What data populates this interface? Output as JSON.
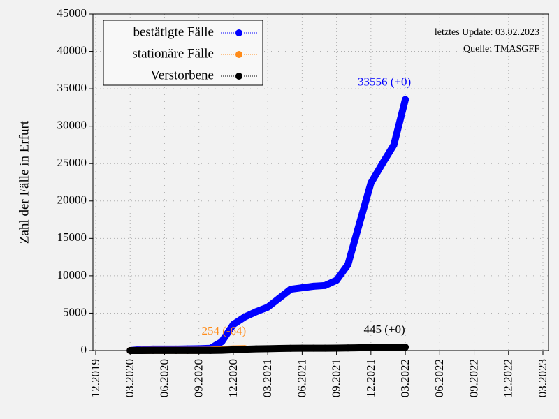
{
  "chart_data": {
    "type": "line",
    "y_label": "Zahl der Fälle in Erfurt",
    "annotations": [
      "letztes Update: 03.02.2023",
      "Quelle: TMASGFF"
    ],
    "xlim": [
      "12.2019",
      "03.2023"
    ],
    "xticks": [
      "12.2019",
      "03.2020",
      "06.2020",
      "09.2020",
      "12.2020",
      "03.2021",
      "06.2021",
      "09.2021",
      "12.2021",
      "03.2022",
      "06.2022",
      "09.2022",
      "12.2022",
      "03.2023"
    ],
    "ylim": [
      0,
      45000
    ],
    "yticks": [
      0,
      5000,
      10000,
      15000,
      20000,
      25000,
      30000,
      35000,
      40000,
      45000
    ],
    "grid": true,
    "legend": "upper left",
    "series": [
      {
        "name": "bestätigte Fälle",
        "color": "#0000ff",
        "label": "33556 (+0)",
        "x": [
          "03.2020",
          "04.2020",
          "05.2020",
          "06.2020",
          "07.2020",
          "08.2020",
          "09.2020",
          "10.2020",
          "11.2020",
          "12.2020",
          "01.2021",
          "02.2021",
          "03.2021",
          "04.2021",
          "05.2021",
          "06.2021",
          "07.2021",
          "08.2021",
          "09.2021",
          "10.2021",
          "11.2021",
          "12.2021",
          "01.2022",
          "02.2022",
          "03.2022"
        ],
        "values": [
          0,
          150,
          200,
          200,
          200,
          220,
          250,
          300,
          1200,
          3500,
          4500,
          5200,
          5800,
          7000,
          8200,
          8400,
          8600,
          8700,
          9400,
          11500,
          17000,
          22400,
          25000,
          27500,
          33556
        ]
      },
      {
        "name": "stationäre Fälle",
        "color": "#ff8c1a",
        "label": "254 (-64)",
        "x": [
          "03.2020",
          "04.2020",
          "05.2020",
          "06.2020",
          "07.2020",
          "08.2020",
          "09.2020",
          "10.2020",
          "11.2020",
          "12.2020",
          "01.2021"
        ],
        "values": [
          0,
          20,
          30,
          30,
          30,
          30,
          40,
          60,
          150,
          220,
          254
        ]
      },
      {
        "name": "Verstorbene",
        "color": "#000000",
        "label": "445 (+0)",
        "x": [
          "03.2020",
          "04.2020",
          "05.2020",
          "06.2020",
          "07.2020",
          "08.2020",
          "09.2020",
          "10.2020",
          "11.2020",
          "12.2020",
          "01.2021",
          "02.2021",
          "03.2021",
          "04.2021",
          "05.2021",
          "06.2021",
          "07.2021",
          "08.2021",
          "09.2021",
          "10.2021",
          "11.2021",
          "12.2021",
          "01.2022",
          "02.2022",
          "03.2022"
        ],
        "values": [
          0,
          5,
          10,
          10,
          10,
          10,
          12,
          15,
          40,
          100,
          170,
          220,
          250,
          280,
          300,
          310,
          315,
          320,
          330,
          345,
          370,
          400,
          420,
          435,
          445
        ]
      }
    ]
  }
}
